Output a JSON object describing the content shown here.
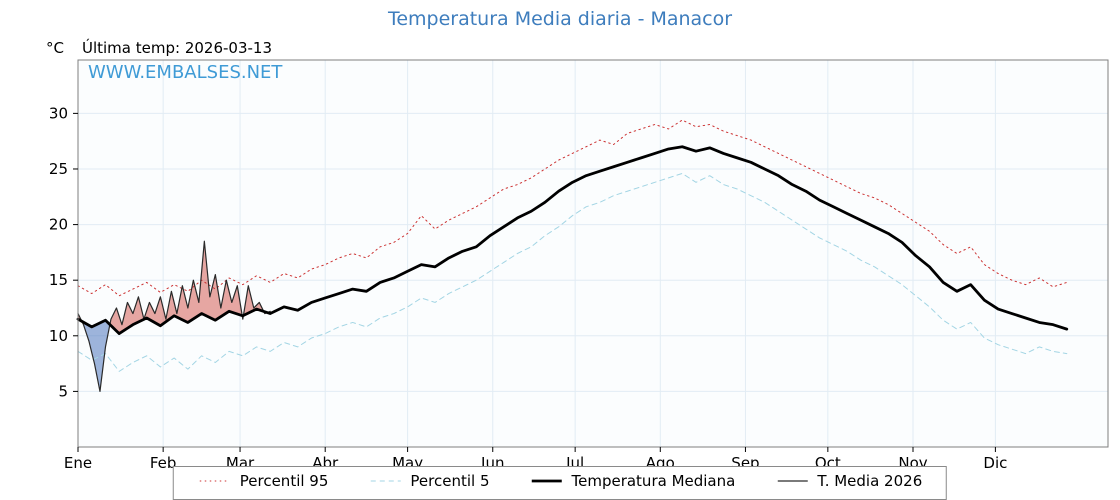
{
  "watermark": "WWW.EMBALSES.NET",
  "chart_data": {
    "type": "line",
    "title": "Temperatura Media diaria - Manacor",
    "annotation": "Última temp: 2026-03-13",
    "ylabel": "°C",
    "x_axis": {
      "months": [
        "Ene",
        "Feb",
        "Mar",
        "Abr",
        "May",
        "Jun",
        "Jul",
        "Ago",
        "Sep",
        "Oct",
        "Nov",
        "Dic"
      ],
      "month_start_days": [
        0,
        31,
        59,
        90,
        120,
        151,
        181,
        212,
        243,
        273,
        304,
        334
      ],
      "xlim": [
        0,
        375
      ]
    },
    "y_axis": {
      "ticks": [
        5,
        10,
        15,
        20,
        25,
        30
      ],
      "ylim": [
        0,
        34.8
      ]
    },
    "grid": true,
    "legend_position": "bottom",
    "colors": {
      "p95": "#cc3333",
      "p5": "#a3d5e4",
      "median": "#000000",
      "t2026": "#2a2a2a",
      "fill_above": "rgba(205,60,50,0.45)",
      "fill_below": "rgba(80,120,190,0.55)",
      "grid": "#e2ecf4",
      "plot_bg": "#fbfdfe",
      "border": "#7f7f7f",
      "title": "#3e7dbd",
      "watermark": "#3f9bd6"
    },
    "series": [
      {
        "name": "Percentil 95",
        "key": "p95",
        "style": "dotted",
        "width": 1,
        "start_day": 0,
        "step_days": 5,
        "values": [
          14.5,
          13.8,
          14.6,
          13.6,
          14.2,
          14.8,
          13.9,
          14.6,
          14.0,
          15.0,
          14.2,
          15.2,
          14.6,
          15.4,
          14.8,
          15.6,
          15.2,
          16.0,
          16.4,
          17.0,
          17.4,
          17.0,
          18.0,
          18.4,
          19.2,
          20.8,
          19.6,
          20.4,
          21.0,
          21.6,
          22.4,
          23.2,
          23.6,
          24.2,
          25.0,
          25.8,
          26.4,
          27.0,
          27.6,
          27.2,
          28.2,
          28.6,
          29.0,
          28.6,
          29.4,
          28.8,
          29.0,
          28.4,
          28.0,
          27.6,
          27.0,
          26.4,
          25.8,
          25.2,
          24.6,
          24.0,
          23.4,
          22.8,
          22.4,
          21.8,
          21.0,
          20.2,
          19.4,
          18.2,
          17.4,
          18.0,
          16.4,
          15.6,
          15.0,
          14.6,
          15.2,
          14.4,
          14.8
        ]
      },
      {
        "name": "Percentil 5",
        "key": "p5",
        "style": "dashed",
        "width": 1,
        "start_day": 0,
        "step_days": 5,
        "values": [
          8.6,
          7.8,
          8.4,
          6.8,
          7.6,
          8.2,
          7.2,
          8.0,
          7.0,
          8.2,
          7.6,
          8.6,
          8.2,
          9.0,
          8.6,
          9.4,
          9.0,
          9.8,
          10.2,
          10.8,
          11.2,
          10.8,
          11.6,
          12.0,
          12.6,
          13.4,
          13.0,
          13.8,
          14.4,
          15.0,
          15.8,
          16.6,
          17.4,
          18.0,
          19.0,
          19.8,
          20.8,
          21.6,
          22.0,
          22.6,
          23.0,
          23.4,
          23.8,
          24.2,
          24.6,
          23.8,
          24.4,
          23.6,
          23.2,
          22.6,
          22.0,
          21.2,
          20.4,
          19.6,
          18.8,
          18.2,
          17.6,
          16.8,
          16.2,
          15.4,
          14.6,
          13.6,
          12.6,
          11.4,
          10.6,
          11.2,
          9.8,
          9.2,
          8.8,
          8.4,
          9.0,
          8.6,
          8.4
        ]
      },
      {
        "name": "Temperatura Mediana",
        "key": "median",
        "style": "solid",
        "width": 2.8,
        "start_day": 0,
        "step_days": 5,
        "values": [
          11.5,
          10.8,
          11.4,
          10.2,
          11.0,
          11.6,
          10.9,
          11.8,
          11.2,
          12.0,
          11.4,
          12.2,
          11.8,
          12.4,
          12.0,
          12.6,
          12.3,
          13.0,
          13.4,
          13.8,
          14.2,
          14.0,
          14.8,
          15.2,
          15.8,
          16.4,
          16.2,
          17.0,
          17.6,
          18.0,
          19.0,
          19.8,
          20.6,
          21.2,
          22.0,
          23.0,
          23.8,
          24.4,
          24.8,
          25.2,
          25.6,
          26.0,
          26.4,
          26.8,
          27.0,
          26.6,
          26.9,
          26.4,
          26.0,
          25.6,
          25.0,
          24.4,
          23.6,
          23.0,
          22.2,
          21.6,
          21.0,
          20.4,
          19.8,
          19.2,
          18.4,
          17.2,
          16.2,
          14.8,
          14.0,
          14.6,
          13.2,
          12.4,
          12.0,
          11.6,
          11.2,
          11.0,
          10.6
        ]
      },
      {
        "name": "T. Media 2026",
        "key": "t2026",
        "style": "solid",
        "width": 1.2,
        "start_day": 0,
        "step_days": 2,
        "values": [
          12.0,
          11.0,
          9.5,
          7.5,
          5.0,
          9.0,
          11.5,
          12.5,
          11.0,
          13.0,
          12.0,
          13.5,
          11.5,
          13.0,
          12.0,
          13.5,
          11.5,
          14.0,
          12.0,
          14.5,
          12.5,
          15.0,
          13.0,
          18.5,
          13.5,
          15.5,
          12.5,
          15.0,
          13.0,
          14.5,
          11.5,
          14.5,
          12.5,
          13.0,
          12.0,
          12.2
        ]
      }
    ],
    "fill_between": {
      "upper": "t2026",
      "baseline": "median",
      "above_color_key": "fill_above",
      "below_color_key": "fill_below"
    }
  }
}
